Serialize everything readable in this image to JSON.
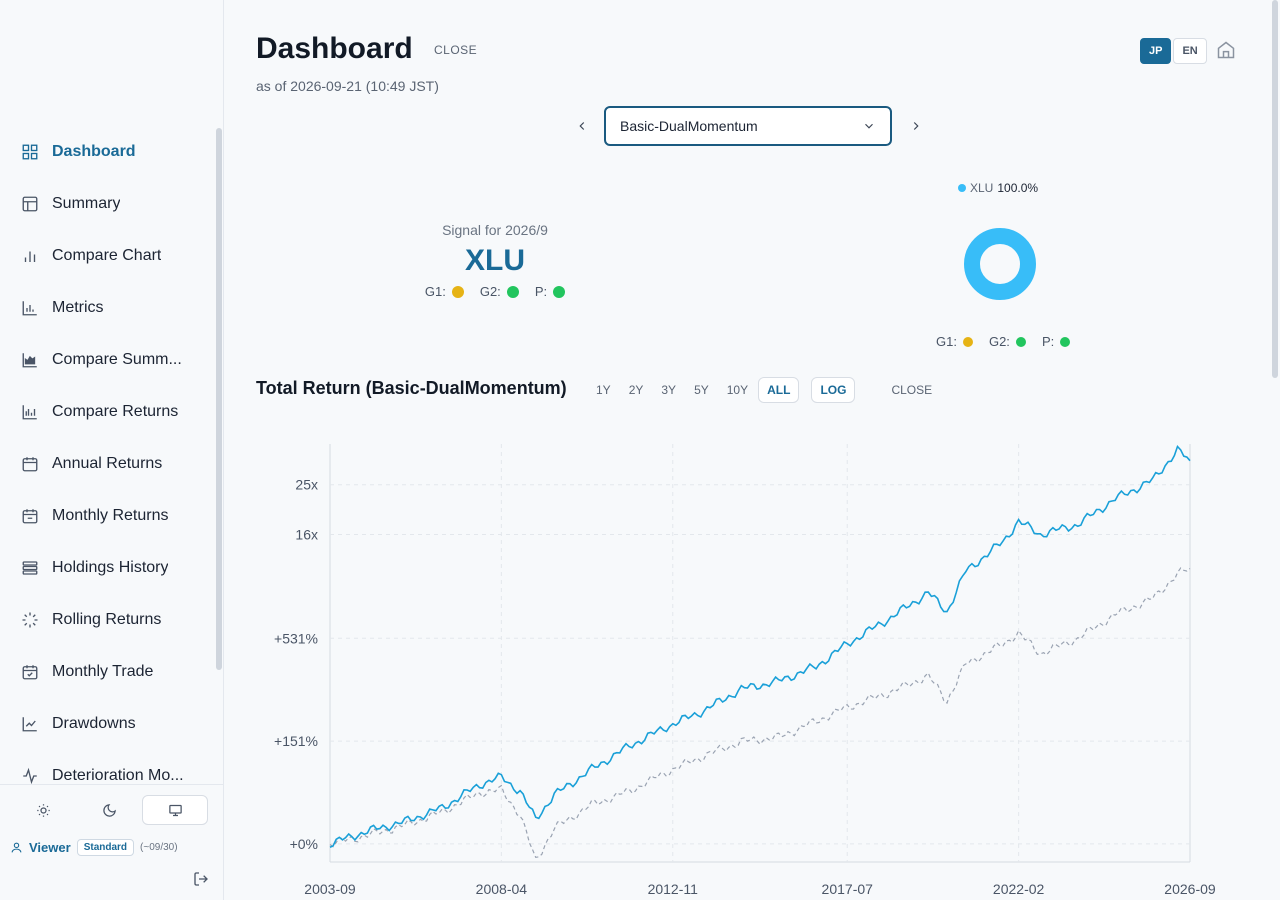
{
  "sidebar": {
    "items": [
      {
        "label": "Dashboard",
        "icon": "grid-icon",
        "active": true
      },
      {
        "label": "Summary",
        "icon": "layout-icon"
      },
      {
        "label": "Compare Chart",
        "icon": "bar-chart-icon"
      },
      {
        "label": "Metrics",
        "icon": "bar-chart-axis-icon"
      },
      {
        "label": "Compare Summ...",
        "icon": "area-chart-icon"
      },
      {
        "label": "Compare Returns",
        "icon": "bar-chart-multi-icon"
      },
      {
        "label": "Annual Returns",
        "icon": "calendar-icon"
      },
      {
        "label": "Monthly Returns",
        "icon": "calendar-minus-icon"
      },
      {
        "label": "Holdings History",
        "icon": "rows-icon"
      },
      {
        "label": "Rolling Returns",
        "icon": "loader-icon"
      },
      {
        "label": "Monthly Trade",
        "icon": "calendar-check-icon"
      },
      {
        "label": "Drawdowns",
        "icon": "line-chart-icon"
      },
      {
        "label": "Deterioration Mo...",
        "icon": "activity-icon"
      }
    ],
    "user": {
      "name": "Viewer",
      "plan": "Standard",
      "until": "(~09/30)"
    }
  },
  "header": {
    "title": "Dashboard",
    "close_label": "CLOSE",
    "as_of": "as of 2026-09-21 (10:49 JST)",
    "lang": [
      "JP",
      "EN"
    ]
  },
  "selector": {
    "value": "Basic-DualMomentum"
  },
  "signal": {
    "title": "Signal for 2026/9",
    "ticker": "XLU",
    "g1_label": "G1:",
    "g2_label": "G2:",
    "p_label": "P:",
    "g1_color": "#e6b315",
    "g2_color": "#22c55e",
    "p_color": "#22c55e"
  },
  "allocation": {
    "ticker": "XLU",
    "pct": "100.0%",
    "color": "#38bdf8"
  },
  "total_return": {
    "title": "Total Return (Basic-DualMomentum)",
    "ranges": [
      "1Y",
      "2Y",
      "3Y",
      "5Y",
      "10Y",
      "ALL"
    ],
    "active_range": "ALL",
    "log_label": "LOG",
    "close_label": "CLOSE"
  },
  "chart_data": {
    "type": "line",
    "yscale": "log",
    "x_ticks": [
      "2003-09",
      "2008-04",
      "2012-11",
      "2017-07",
      "2022-02",
      "2026-09"
    ],
    "y_ticks": [
      "+0%",
      "+151%",
      "+531%",
      "16x",
      "25x"
    ],
    "y_tick_values": [
      1,
      2.51,
      6.31,
      16,
      25
    ],
    "series": [
      {
        "style": "solid",
        "color": "#1aa0d8",
        "x": [
          "2003-09",
          "2004-09",
          "2005-09",
          "2006-09",
          "2007-09",
          "2008-04",
          "2008-10",
          "2009-03",
          "2009-09",
          "2010-09",
          "2011-09",
          "2012-09",
          "2013-09",
          "2014-09",
          "2015-09",
          "2016-09",
          "2017-07",
          "2018-09",
          "2019-09",
          "2020-03",
          "2020-09",
          "2021-09",
          "2022-02",
          "2022-09",
          "2023-09",
          "2024-09",
          "2025-09",
          "2026-05",
          "2026-09"
        ],
        "y": [
          1.0,
          1.12,
          1.22,
          1.38,
          1.7,
          1.82,
          1.6,
          1.25,
          1.55,
          1.95,
          2.4,
          2.85,
          3.3,
          4.0,
          4.3,
          4.9,
          6.0,
          7.6,
          9.5,
          8.0,
          11.5,
          15.0,
          18.0,
          16.0,
          17.5,
          22.0,
          26.0,
          34.0,
          31.0
        ]
      },
      {
        "style": "dashed",
        "color": "#9aa3b2",
        "x": [
          "2003-09",
          "2004-09",
          "2005-09",
          "2006-09",
          "2007-09",
          "2008-04",
          "2008-10",
          "2009-03",
          "2009-09",
          "2010-09",
          "2011-09",
          "2012-09",
          "2013-09",
          "2014-09",
          "2015-09",
          "2016-09",
          "2017-07",
          "2018-09",
          "2019-09",
          "2020-03",
          "2020-09",
          "2021-09",
          "2022-02",
          "2022-09",
          "2023-09",
          "2024-09",
          "2025-09",
          "2026-05",
          "2026-09"
        ],
        "y": [
          1.0,
          1.08,
          1.18,
          1.33,
          1.58,
          1.62,
          1.3,
          0.86,
          1.15,
          1.42,
          1.6,
          1.9,
          2.2,
          2.5,
          2.6,
          3.0,
          3.4,
          3.9,
          4.5,
          3.6,
          5.0,
          6.0,
          6.6,
          5.5,
          6.3,
          7.8,
          9.0,
          11.2,
          11.8
        ]
      }
    ],
    "grid": true
  }
}
